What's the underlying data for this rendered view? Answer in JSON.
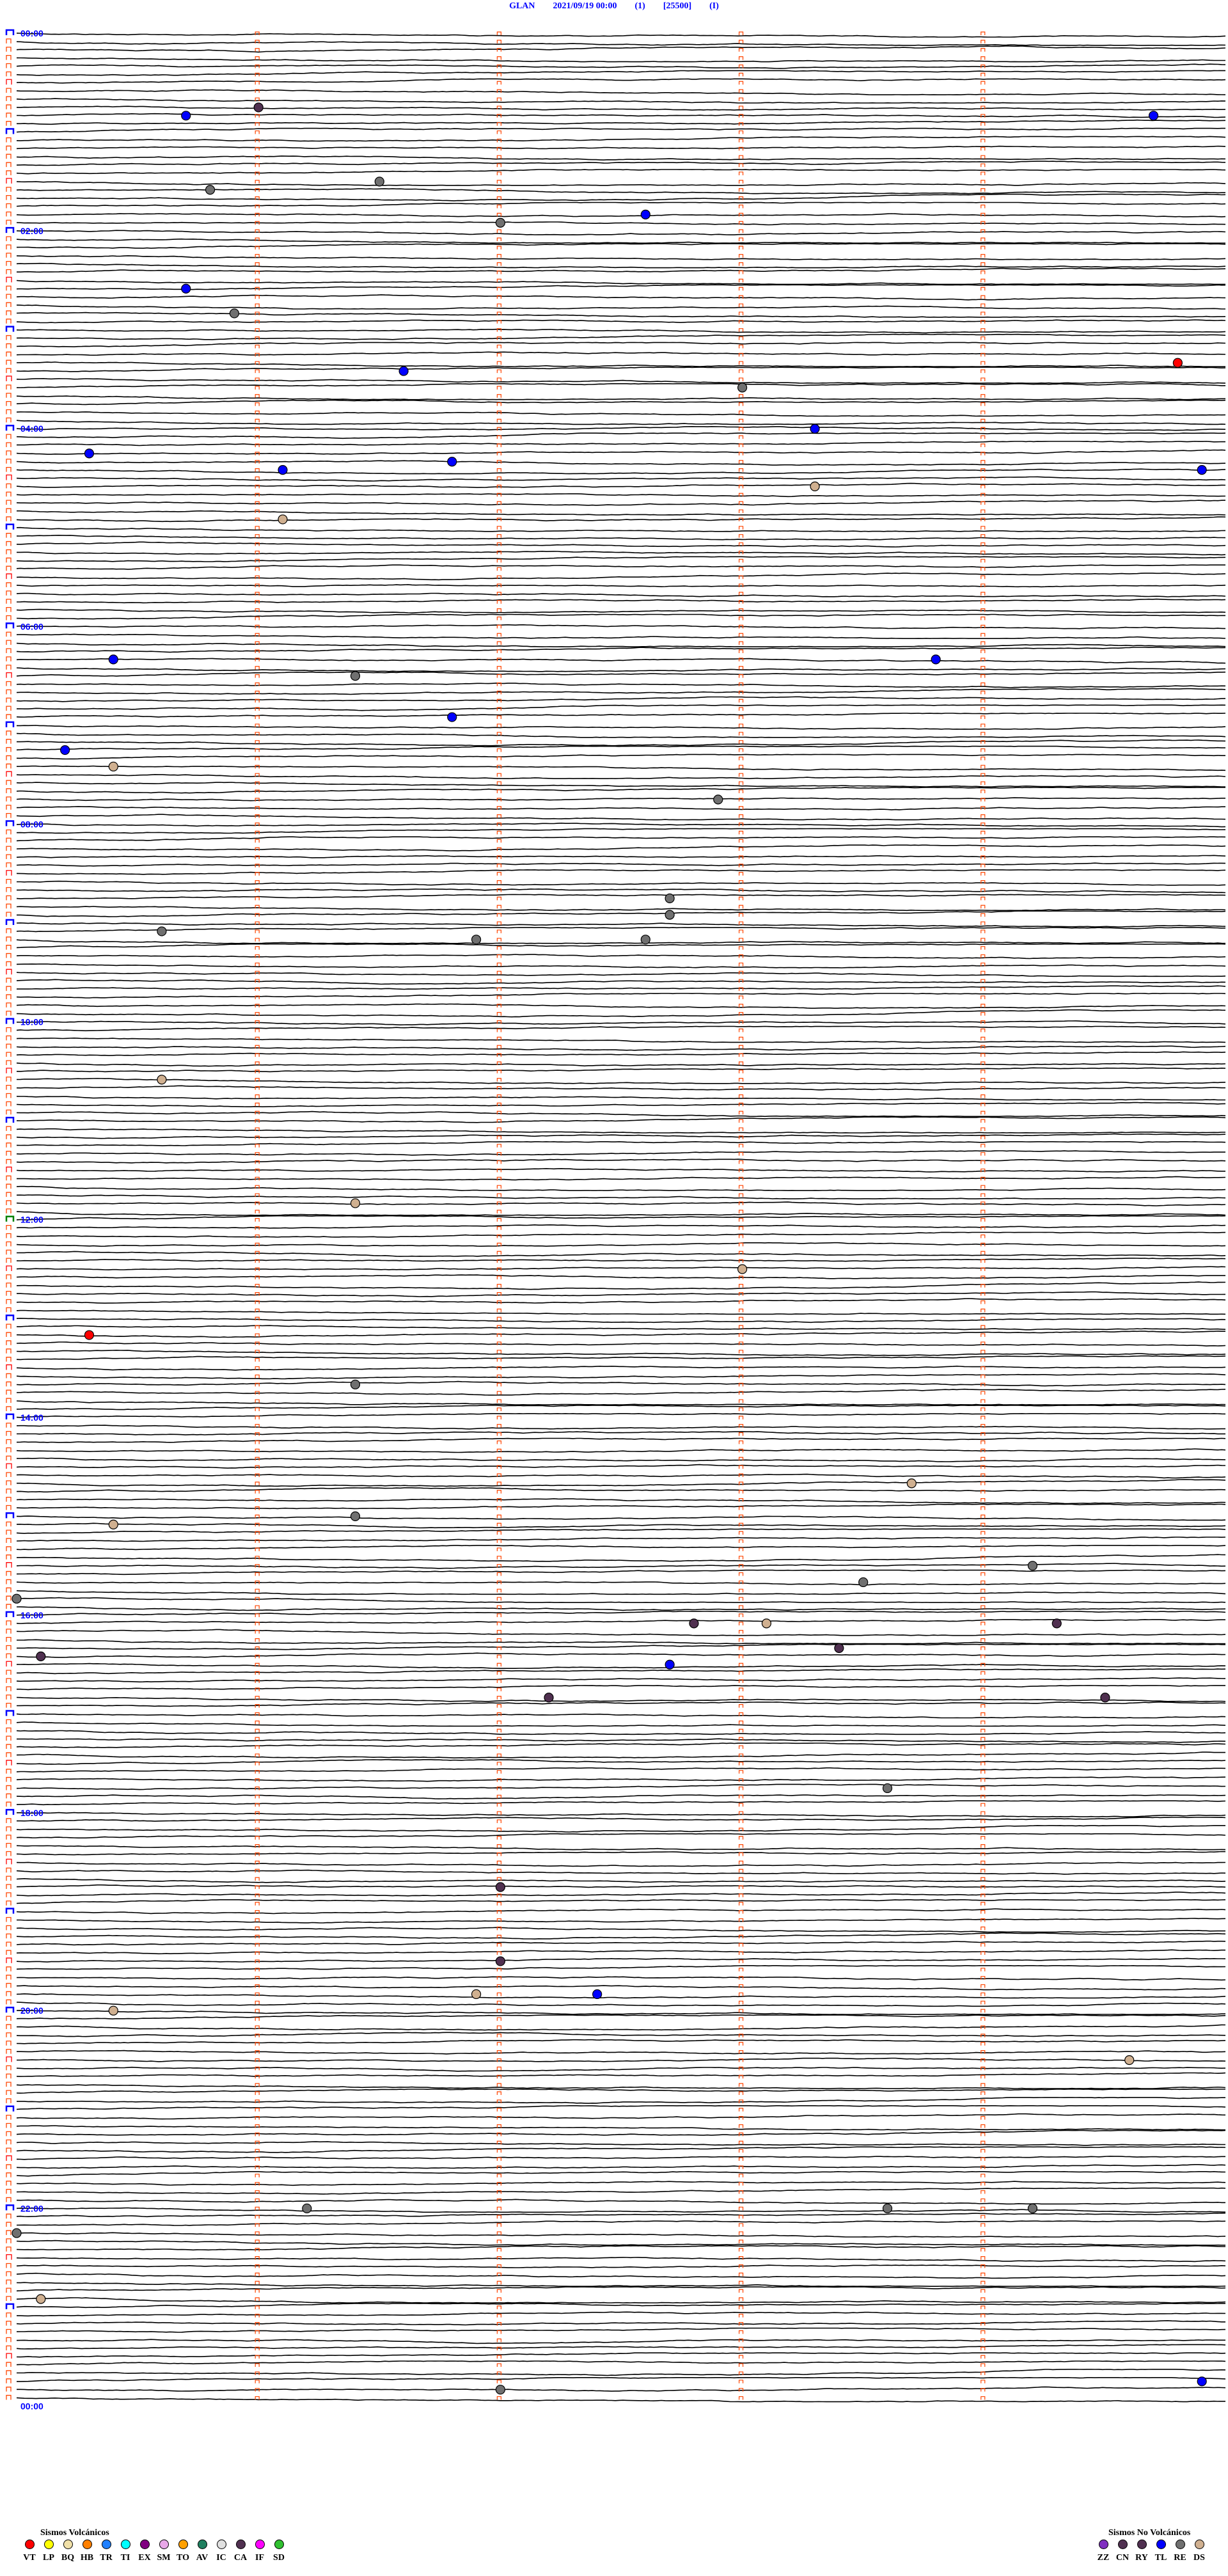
{
  "header": {
    "station": "GLAN",
    "datetime": "2021/09/19 00:00",
    "channel": "(1)",
    "gain": "[25500]",
    "component": "(I)"
  },
  "chart_data": {
    "type": "helicorder",
    "minutes_per_trace": 5,
    "trace_count": 288,
    "start": "2021/09/19 00:00",
    "end": "2021/09/20 00:00",
    "hour_labels": [
      "00:00",
      "02:00",
      "04:00",
      "06:00",
      "08:00",
      "10:00",
      "12:00",
      "14:00",
      "16:00",
      "18:00",
      "20:00",
      "22:00",
      "00:00"
    ],
    "trace_color": "#000000",
    "label_color": "#0000ff",
    "minute_marker_color": "#ff4500",
    "events": [
      {
        "time": "00:46.0",
        "type": "CA"
      },
      {
        "time": "00:50.7",
        "type": "TL"
      },
      {
        "time": "00:54.7",
        "type": "TL"
      },
      {
        "time": "01:31.5",
        "type": "RE"
      },
      {
        "time": "01:35.8",
        "type": "RE"
      },
      {
        "time": "01:52.6",
        "type": "TL"
      },
      {
        "time": "01:57.0",
        "type": "RE"
      },
      {
        "time": "02:35.7",
        "type": "TL"
      },
      {
        "time": "02:50.9",
        "type": "RE"
      },
      {
        "time": "03:24.8",
        "type": "VT"
      },
      {
        "time": "03:26.6",
        "type": "TL"
      },
      {
        "time": "03:38.0",
        "type": "RE"
      },
      {
        "time": "04:03.3",
        "type": "TL"
      },
      {
        "time": "04:15.3",
        "type": "TL"
      },
      {
        "time": "04:21.8",
        "type": "TL"
      },
      {
        "time": "04:26.1",
        "type": "TL"
      },
      {
        "time": "04:29.9",
        "type": "TL"
      },
      {
        "time": "04:38.3",
        "type": "DS"
      },
      {
        "time": "04:56.1",
        "type": "DS"
      },
      {
        "time": "06:20.4",
        "type": "TL"
      },
      {
        "time": "06:23.8",
        "type": "TL"
      },
      {
        "time": "06:31.4",
        "type": "RE"
      },
      {
        "time": "06:56.8",
        "type": "TL"
      },
      {
        "time": "07:15.2",
        "type": "TL"
      },
      {
        "time": "07:25.4",
        "type": "DS"
      },
      {
        "time": "07:47.9",
        "type": "RE"
      },
      {
        "time": "08:47.7",
        "type": "RE"
      },
      {
        "time": "08:57.7",
        "type": "RE"
      },
      {
        "time": "09:05.6",
        "type": "RE"
      },
      {
        "time": "09:11.9",
        "type": "RE"
      },
      {
        "time": "09:12.6",
        "type": "RE"
      },
      {
        "time": "10:35.6",
        "type": "DS"
      },
      {
        "time": "11:51.4",
        "type": "DS"
      },
      {
        "time": "12:33.0",
        "type": "DS"
      },
      {
        "time": "13:10.3",
        "type": "VT"
      },
      {
        "time": "13:41.4",
        "type": "RE"
      },
      {
        "time": "14:43.7",
        "type": "DS"
      },
      {
        "time": "15:01.4",
        "type": "RE"
      },
      {
        "time": "15:05.4",
        "type": "DS"
      },
      {
        "time": "15:34.2",
        "type": "RE"
      },
      {
        "time": "15:43.5",
        "type": "RE"
      },
      {
        "time": "15:50.0",
        "type": "RE"
      },
      {
        "time": "16:07.8",
        "type": "CA"
      },
      {
        "time": "16:08.1",
        "type": "DS"
      },
      {
        "time": "16:09.3",
        "type": "CA"
      },
      {
        "time": "16:23.4",
        "type": "CA"
      },
      {
        "time": "16:25.1",
        "type": "CA"
      },
      {
        "time": "16:32.7",
        "type": "TL"
      },
      {
        "time": "16:52.2",
        "type": "CA"
      },
      {
        "time": "16:54.5",
        "type": "CA"
      },
      {
        "time": "17:48.6",
        "type": "RE"
      },
      {
        "time": "18:47.0",
        "type": "CA"
      },
      {
        "time": "19:32.0",
        "type": "CA"
      },
      {
        "time": "19:51.9",
        "type": "DS"
      },
      {
        "time": "19:52.4",
        "type": "TL"
      },
      {
        "time": "20:00.4",
        "type": "DS"
      },
      {
        "time": "20:34.6",
        "type": "DS"
      },
      {
        "time": "22:01.2",
        "type": "RE"
      },
      {
        "time": "22:03.6",
        "type": "RE"
      },
      {
        "time": "22:04.2",
        "type": "RE"
      },
      {
        "time": "22:15.0",
        "type": "RE"
      },
      {
        "time": "22:55.1",
        "type": "DS"
      },
      {
        "time": "23:49.9",
        "type": "TL"
      },
      {
        "time": "23:52.0",
        "type": "RE"
      }
    ]
  },
  "legend": {
    "volcanic_title": "Sismos Volcánicos",
    "volcanic": [
      {
        "code": "VT",
        "color": "#ff0000"
      },
      {
        "code": "LP",
        "color": "#ffff00"
      },
      {
        "code": "BQ",
        "color": "#f0e0a8"
      },
      {
        "code": "HB",
        "color": "#ff8000"
      },
      {
        "code": "TR",
        "color": "#2080ff"
      },
      {
        "code": "TI",
        "color": "#00ffff"
      },
      {
        "code": "EX",
        "color": "#800080"
      },
      {
        "code": "SM",
        "color": "#e8a8e8"
      },
      {
        "code": "TO",
        "color": "#ffa000"
      },
      {
        "code": "AV",
        "color": "#208060"
      },
      {
        "code": "IC",
        "color": "#e0e0e0"
      },
      {
        "code": "CA",
        "color": "#503050"
      },
      {
        "code": "IF",
        "color": "#ff00ff"
      },
      {
        "code": "SD",
        "color": "#30c030"
      }
    ],
    "non_volcanic_title": "Sismos No Volcánicos",
    "non_volcanic": [
      {
        "code": "ZZ",
        "color": "#8030c0"
      },
      {
        "code": "CN",
        "color": "#503050"
      },
      {
        "code": "RY",
        "color": "#503050"
      },
      {
        "code": "TL",
        "color": "#0000ff"
      },
      {
        "code": "RE",
        "color": "#707070"
      },
      {
        "code": "DS",
        "color": "#d0b090"
      }
    ]
  }
}
